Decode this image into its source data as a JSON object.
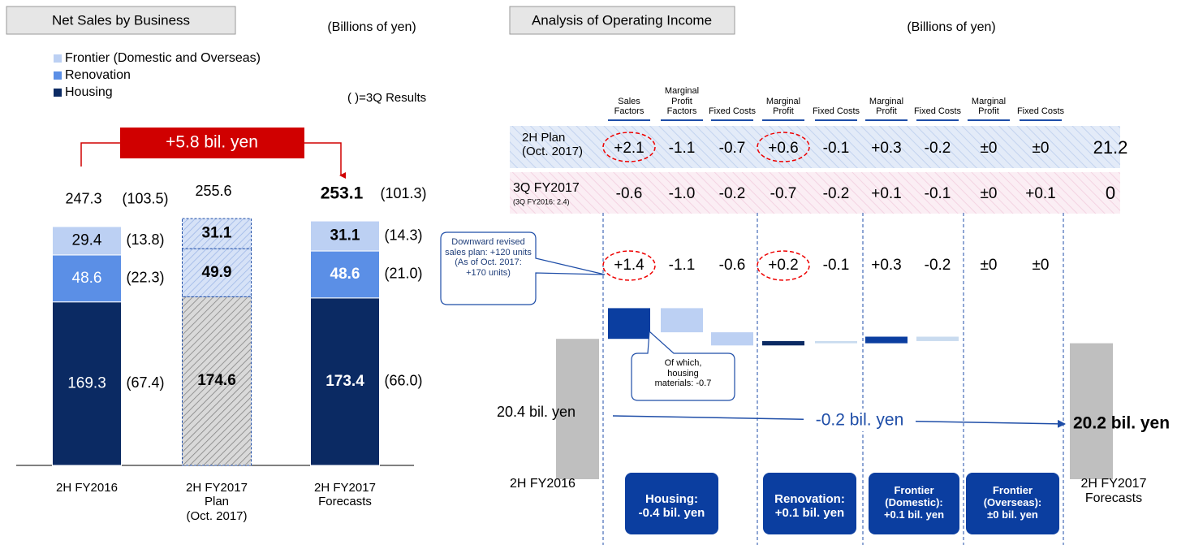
{
  "chart_data": [
    {
      "type": "stacked_bar",
      "title": "Net Sales by Business",
      "unit": "(Billions of yen)",
      "note": "( )=3Q Results",
      "categories": [
        "2H FY2016",
        "2H FY2017\nPlan\n(Oct. 2017)",
        "2H FY2017\nForecasts"
      ],
      "series": [
        {
          "name": "Housing",
          "color": "#0b2a63",
          "values": [
            169.3,
            174.6,
            173.4
          ],
          "results": [
            "(67.4)",
            null,
            "(66.0)"
          ]
        },
        {
          "name": "Renovation",
          "color": "#5b8fe6",
          "values": [
            48.6,
            49.9,
            48.6
          ],
          "results": [
            "(22.3)",
            null,
            "(21.0)"
          ]
        },
        {
          "name": "Frontier (Domestic and Overseas)",
          "color": "#bcd0f3",
          "values": [
            29.4,
            31.1,
            31.1
          ],
          "results": [
            "(13.8)",
            null,
            "(14.3)"
          ]
        }
      ],
      "totals": [
        247.3,
        255.6,
        253.1
      ],
      "total_results": [
        "(103.5)",
        null,
        "(101.3)"
      ],
      "hatched": [
        false,
        true,
        false
      ],
      "annotation": "+5.8 bil. yen",
      "ylim": [
        0,
        300
      ]
    },
    {
      "type": "waterfall",
      "title": "Analysis of Operating Income",
      "unit": "(Billions of yen)",
      "categories": [
        "Sales Factors",
        "Marginal Profit Factors",
        "Fixed Costs",
        "Marginal Profit",
        "Fixed Costs",
        "Marginal Profit",
        "Fixed Costs",
        "Marginal Profit",
        "Fixed Costs"
      ],
      "values": [
        1.4,
        -1.1,
        -0.6,
        0.2,
        -0.1,
        0.3,
        -0.2,
        0,
        0
      ],
      "value_labels": [
        "+1.4",
        "-1.1",
        "-0.6",
        "+0.2",
        "-0.1",
        "+0.3",
        "-0.2",
        "±0",
        "±0"
      ],
      "colors": [
        "#0b3ea0",
        "#bcd0f3",
        "#bcd0f3",
        "#0b2a63",
        "#c9dbef",
        "#0b3ea0",
        "#c9dbef",
        "#bcd0f3",
        "#bcd0f3"
      ],
      "rows": [
        {
          "label": "2H Plan\n(Oct. 2017)",
          "values": [
            "+2.1",
            "-1.1",
            "-0.7",
            "+0.6",
            "-0.1",
            "+0.3",
            "-0.2",
            "±0",
            "±0",
            "21.2"
          ]
        },
        {
          "label": "3Q FY2017",
          "sublabel": "(3Q FY2016: 2.4)",
          "values": [
            "-0.6",
            "-1.0",
            "-0.2",
            "-0.7",
            "-0.2",
            "+0.1",
            "-0.1",
            "±0",
            "+0.1",
            "0"
          ]
        }
      ],
      "totals": {
        "categories": [
          "2H FY2016",
          "2H FY2017\nForecasts"
        ],
        "values": [
          20.4,
          20.2
        ],
        "value_labels": [
          "20.4 bil. yen",
          "20.2 bil. yen"
        ],
        "color": "#bfbfbf"
      },
      "change_label": "-0.2 bil. yen",
      "groups": [
        "Housing:\n-0.4 bil. yen",
        "Renovation:\n+0.1 bil. yen",
        "Frontier\n(Domestic):\n+0.1 bil. yen",
        "Frontier\n(Overseas):\n±0 bil. yen"
      ],
      "callouts": [
        "Downward revised\nsales plan: +120 units\n(As of Oct. 2017:\n+170 units)",
        "Of which,\nhousing\nmaterials: -0.7"
      ],
      "ylim": [
        14,
        22
      ]
    }
  ]
}
